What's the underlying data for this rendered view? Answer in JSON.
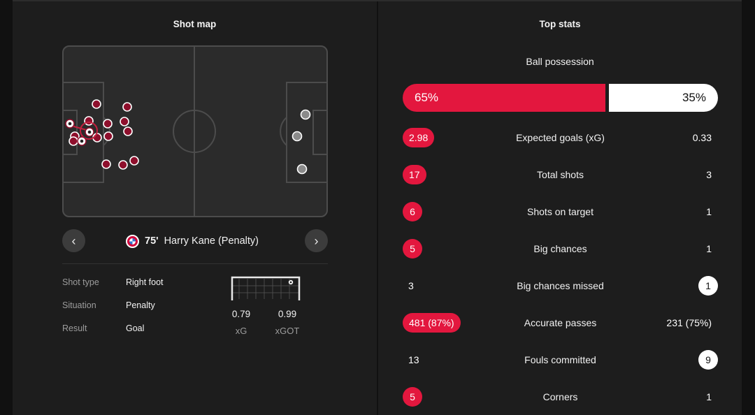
{
  "shot_map": {
    "title": "Shot map",
    "selected_shot": {
      "minute": "75'",
      "player": "Harry Kane (Penalty)"
    },
    "details": [
      {
        "label": "Shot type",
        "value": "Right foot"
      },
      {
        "label": "Situation",
        "value": "Penalty"
      },
      {
        "label": "Result",
        "value": "Goal"
      }
    ],
    "xg": {
      "value": "0.79",
      "label": "xG"
    },
    "xgot": {
      "value": "0.99",
      "label": "xGOT"
    },
    "colors": {
      "home_shot": "#8e0f2c",
      "away_shot": "#8a8a8a",
      "pitch": "#2b2b2b",
      "lines": "#4c4c4c"
    },
    "icons": {
      "prev": "chevron-left-icon",
      "next": "chevron-right-icon"
    }
  },
  "top_stats": {
    "title": "Top stats",
    "possession": {
      "label": "Ball possession",
      "home": "65%",
      "away": "35%",
      "home_fraction": 0.65
    },
    "rows": [
      {
        "name": "Expected goals (xG)",
        "home": "2.98",
        "away": "0.33",
        "highlight": "home"
      },
      {
        "name": "Total shots",
        "home": "17",
        "away": "3",
        "highlight": "home"
      },
      {
        "name": "Shots on target",
        "home": "6",
        "away": "1",
        "highlight": "home"
      },
      {
        "name": "Big chances",
        "home": "5",
        "away": "1",
        "highlight": "home"
      },
      {
        "name": "Big chances missed",
        "home": "3",
        "away": "1",
        "highlight": "away"
      },
      {
        "name": "Accurate passes",
        "home": "481 (87%)",
        "away": "231 (75%)",
        "highlight": "home"
      },
      {
        "name": "Fouls committed",
        "home": "13",
        "away": "9",
        "highlight": "away"
      },
      {
        "name": "Corners",
        "home": "5",
        "away": "1",
        "highlight": "home"
      }
    ],
    "colors": {
      "home": "#e3173e",
      "away": "#ffffff"
    }
  }
}
